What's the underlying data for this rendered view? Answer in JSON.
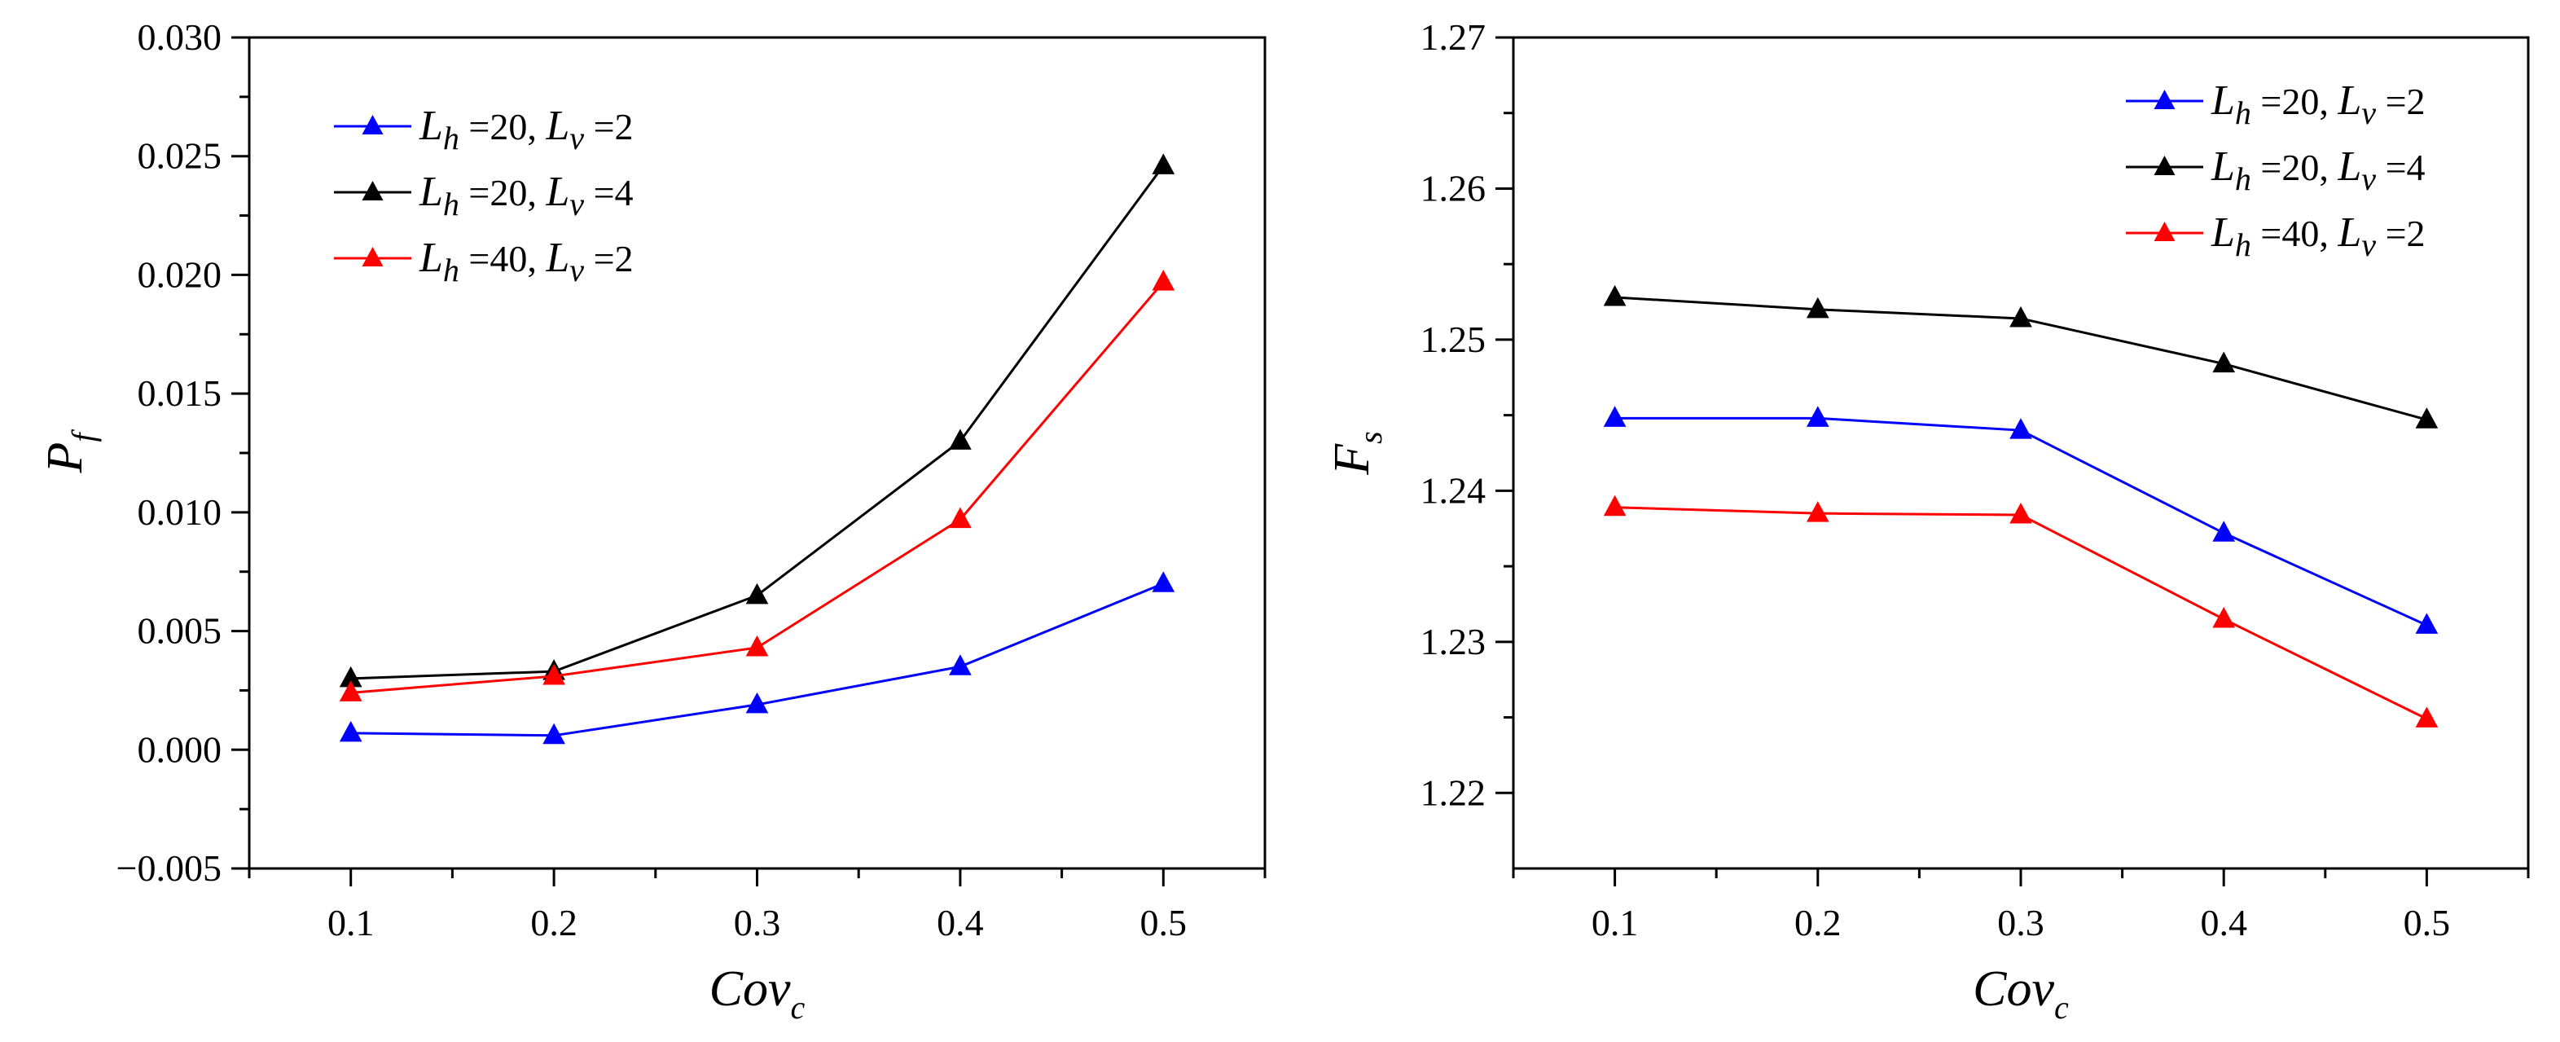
{
  "chart_data": [
    {
      "type": "line",
      "x": [
        0.1,
        0.2,
        0.3,
        0.4,
        0.5
      ],
      "xticks": [
        "0.1",
        "0.2",
        "0.3",
        "0.4",
        "0.5"
      ],
      "xlim": [
        0.05,
        0.55
      ],
      "ylim": [
        -0.005,
        0.03
      ],
      "yticks": [
        "−0.005",
        "0.000",
        "0.005",
        "0.010",
        "0.015",
        "0.020",
        "0.025",
        "0.030"
      ],
      "ytick_values": [
        -0.005,
        0,
        0.005,
        0.01,
        0.015,
        0.02,
        0.025,
        0.03
      ],
      "xlabel": {
        "main": "Cov",
        "sub": "c"
      },
      "ylabel": {
        "main": "P",
        "sub": "f"
      },
      "legend_position": "top-left",
      "series": [
        {
          "name": "Lh=20, Lv=2",
          "color": "#0000ff",
          "values": [
            0.0007,
            0.0006,
            0.0019,
            0.0035,
            0.007
          ],
          "label": {
            "l1": "L",
            "s1": "h",
            "v1": "=20,",
            "l2": "L",
            "s2": "v",
            "v2": "=2"
          }
        },
        {
          "name": "Lh=20, Lv=4",
          "color": "#000000",
          "values": [
            0.003,
            0.0033,
            0.0065,
            0.013,
            0.0246
          ],
          "label": {
            "l1": "L",
            "s1": "h",
            "v1": "=20,",
            "l2": "L",
            "s2": "v",
            "v2": "=4"
          }
        },
        {
          "name": "Lh=40, Lv=2",
          "color": "#ff0000",
          "values": [
            0.0024,
            0.0031,
            0.0043,
            0.0097,
            0.0197
          ],
          "label": {
            "l1": "L",
            "s1": "h",
            "v1": "=40,",
            "l2": "L",
            "s2": "v",
            "v2": "=2"
          }
        }
      ]
    },
    {
      "type": "line",
      "x": [
        0.1,
        0.2,
        0.3,
        0.4,
        0.5
      ],
      "xticks": [
        "0.1",
        "0.2",
        "0.3",
        "0.4",
        "0.5"
      ],
      "xlim": [
        0.05,
        0.55
      ],
      "ylim": [
        1.215,
        1.27
      ],
      "yticks": [
        "1.22",
        "1.23",
        "1.24",
        "1.25",
        "1.26",
        "1.27"
      ],
      "ytick_values": [
        1.22,
        1.23,
        1.24,
        1.25,
        1.26,
        1.27
      ],
      "xlabel": {
        "main": "Cov",
        "sub": "c"
      },
      "ylabel": {
        "main": "F",
        "sub": "s"
      },
      "legend_position": "top-right",
      "series": [
        {
          "name": "Lh=20, Lv=2",
          "color": "#0000ff",
          "values": [
            1.2448,
            1.2448,
            1.244,
            1.2372,
            1.2311
          ],
          "label": {
            "l1": "L",
            "s1": "h",
            "v1": "=20,",
            "l2": "L",
            "s2": "v",
            "v2": "=2"
          }
        },
        {
          "name": "Lh=20, Lv=4",
          "color": "#000000",
          "values": [
            1.2528,
            1.252,
            1.2514,
            1.2484,
            1.2447
          ],
          "label": {
            "l1": "L",
            "s1": "h",
            "v1": "=20,",
            "l2": "L",
            "s2": "v",
            "v2": "=4"
          }
        },
        {
          "name": "Lh=40, Lv=2",
          "color": "#ff0000",
          "values": [
            1.2389,
            1.2385,
            1.2384,
            1.2315,
            1.2249
          ],
          "label": {
            "l1": "L",
            "s1": "h",
            "v1": "=40,",
            "l2": "L",
            "s2": "v",
            "v2": "=2"
          }
        }
      ]
    }
  ]
}
